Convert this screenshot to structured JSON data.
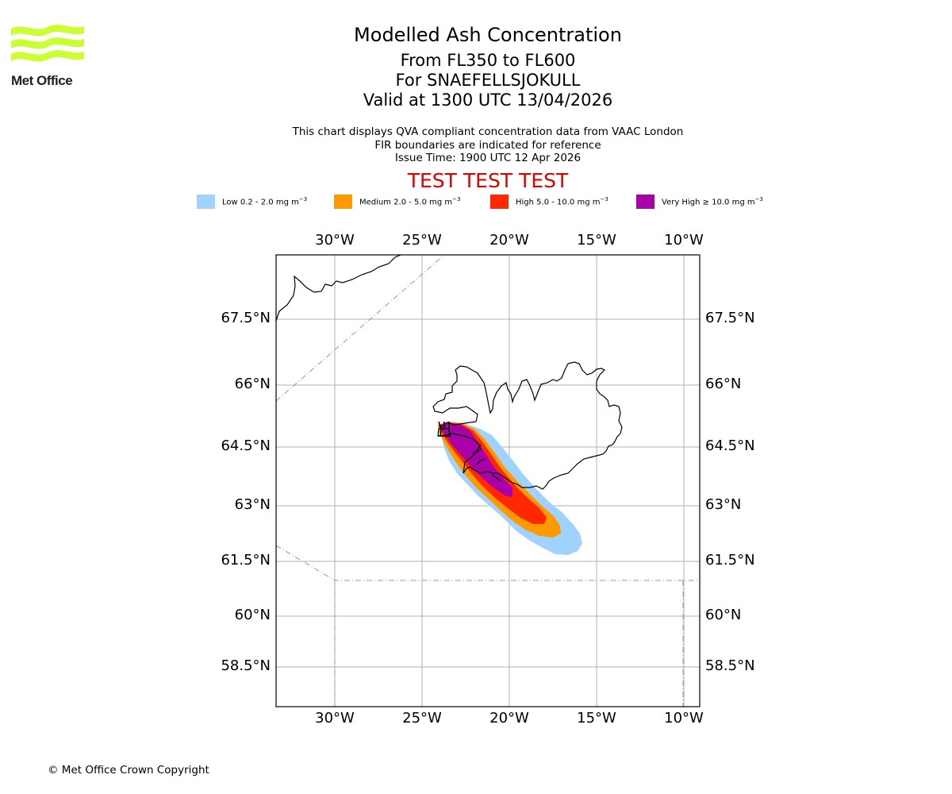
{
  "header": {
    "logo_text": "Met Office",
    "title": "Modelled Ash Concentration",
    "level_range": "From FL350 to FL600",
    "volcano": "For SNAEFELLSJOKULL",
    "valid_time": "Valid at 1300 UTC 13/04/2026",
    "description_lines": [
      "This chart displays QVA compliant concentration data from VAAC London",
      "FIR boundaries are indicated for reference",
      "Issue Time: 1900 UTC 12 Apr 2026"
    ],
    "test_banner": "TEST TEST TEST"
  },
  "legend": [
    {
      "label": "Low 0.2 - 2.0 mg m",
      "unit_exp": "−3",
      "color": "#a0d2ff"
    },
    {
      "label": "Medium 2.0 - 5.0 mg m",
      "unit_exp": "−3",
      "color": "#ff9900"
    },
    {
      "label": "High 5.0 - 10.0 mg m",
      "unit_exp": "−3",
      "color": "#ff2800"
    },
    {
      "label": "Very High  ≥  10.0 mg m",
      "unit_exp": "−3",
      "color": "#aa00aa"
    }
  ],
  "axes": {
    "longitude_ticks": [
      "30°W",
      "25°W",
      "20°W",
      "15°W",
      "10°W"
    ],
    "latitude_ticks": [
      "67.5°N",
      "66°N",
      "64.5°N",
      "63°N",
      "61.5°N",
      "60°N",
      "58.5°N"
    ],
    "lon_values": [
      -30,
      -25,
      -20,
      -15,
      -10
    ],
    "lat_values": [
      67.5,
      66,
      64.5,
      63,
      61.5,
      60,
      58.5
    ]
  },
  "colors": {
    "grid": "#b0b0b0",
    "fir_boundary": "#999999",
    "coastline": "#000000",
    "test_banner": "#dd0000",
    "logo_green": "#ccff33"
  },
  "footer": {
    "copyright": "© Met Office Crown Copyright"
  }
}
